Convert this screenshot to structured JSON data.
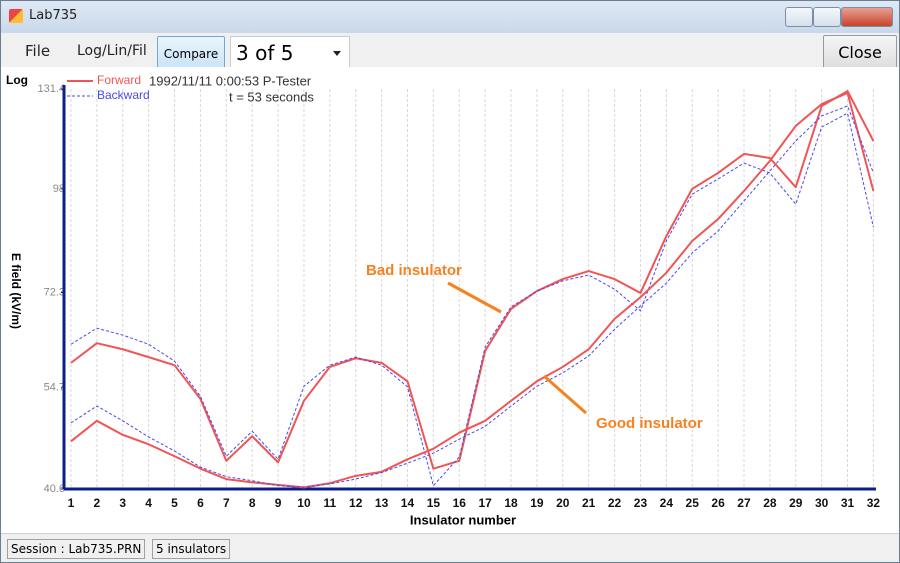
{
  "window": {
    "title": "Lab735"
  },
  "toolbar": {
    "menu": [
      "File",
      "Log/Lin/Fil"
    ],
    "compare": "Compare",
    "selector": "3 of 5",
    "close": "Close"
  },
  "status_bar": [
    "Session : Lab735.PRN",
    "5 insulators"
  ],
  "chart_data": {
    "type": "line",
    "scale_label": "Log",
    "header": [
      "1992/11/11 0:00:53 P-Tester",
      "t = 53 seconds"
    ],
    "x_label": "Insulator number",
    "y_label": "E field (kV/m)",
    "x": [
      1,
      2,
      3,
      4,
      5,
      6,
      7,
      8,
      9,
      10,
      11,
      12,
      13,
      14,
      15,
      16,
      17,
      18,
      19,
      20,
      21,
      22,
      23,
      24,
      25,
      26,
      27,
      28,
      29,
      30,
      31,
      32
    ],
    "xlim": [
      0.73,
      32.1
    ],
    "xticks": [
      1,
      2,
      3,
      4,
      5,
      6,
      7,
      8,
      9,
      10,
      11,
      12,
      13,
      14,
      15,
      16,
      17,
      18,
      19,
      20,
      21,
      22,
      23,
      24,
      25,
      26,
      27,
      28,
      29,
      30,
      31,
      32
    ],
    "ylim": [
      40.6,
      131.4
    ],
    "yticks": [
      40.6,
      54.7,
      72.3,
      98,
      131.4
    ],
    "y_scale": "log",
    "grid": "x",
    "series": [
      {
        "name": "Forward",
        "color": "#f05555",
        "style": "solid",
        "values": [
          58.8,
          62.3,
          61.2,
          59.8,
          58.4,
          52.9,
          44.1,
          47.4,
          43.9,
          52.6,
          58.1,
          59.6,
          58.8,
          55.7,
          43.1,
          44.1,
          60.9,
          68.9,
          72.6,
          75.2,
          77.0,
          75.2,
          72.2,
          85.3,
          98.0,
          102.7,
          108.6,
          107.3,
          98.5,
          125.0,
          130.6,
          112.8
        ]
      },
      {
        "name": "Backward",
        "color": "#4a4ae8",
        "style": "dashed",
        "values": [
          62.1,
          65.1,
          63.8,
          62.1,
          59.1,
          53.3,
          44.7,
          48.1,
          44.3,
          54.9,
          58.4,
          59.8,
          58.4,
          54.8,
          41.0,
          44.6,
          61.6,
          69.3,
          72.6,
          74.8,
          76.1,
          73.0,
          68.5,
          84.1,
          96.5,
          100.9,
          105.7,
          102.7,
          93.7,
          117.5,
          122.4,
          87.6
        ]
      },
      {
        "color": "#f05555",
        "style": "solid",
        "values": [
          46.7,
          49.6,
          47.6,
          46.3,
          44.7,
          43.1,
          41.8,
          41.4,
          41.1,
          40.8,
          41.3,
          42.2,
          42.7,
          44.3,
          45.7,
          47.9,
          49.6,
          52.6,
          55.7,
          58.1,
          61.2,
          66.9,
          71.3,
          76.6,
          84.1,
          89.7,
          97.4,
          106.4,
          117.9,
          125.7,
          129.9,
          97.4
        ]
      },
      {
        "color": "#4a4ae8",
        "style": "dashed",
        "values": [
          49.3,
          51.8,
          49.6,
          47.3,
          45.4,
          43.3,
          42.1,
          41.6,
          41.0,
          40.8,
          41.2,
          41.8,
          42.6,
          43.8,
          45.1,
          47.0,
          48.8,
          51.8,
          54.9,
          57.1,
          60.0,
          64.9,
          69.5,
          74.3,
          81.2,
          86.6,
          94.6,
          103.3,
          112.8,
          121.4,
          125.0,
          102.7
        ]
      }
    ],
    "annotations": [
      {
        "text": "Bad insulator",
        "color": "#f5821f"
      },
      {
        "text": "Good insulator",
        "color": "#f5821f"
      }
    ]
  }
}
